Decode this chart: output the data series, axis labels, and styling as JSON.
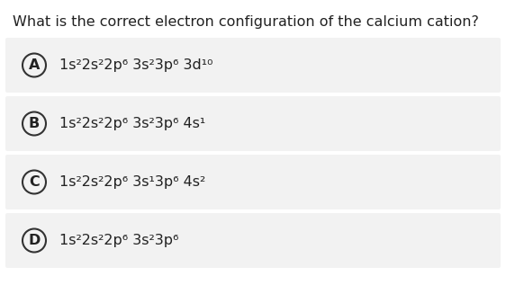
{
  "question": "What is the correct electron configuration of the calcium cation?",
  "options": [
    {
      "letter": "A",
      "config": "1s²2s²2p⁶3s²3p⁶ 3d¹⁰"
    },
    {
      "letter": "B",
      "config": "1s²2s²2p⁶ 3s²3p⁶ 4s¹"
    },
    {
      "letter": "C",
      "config": "1s²2s²2p⁶ 3s¹3p⁶ 4s²"
    },
    {
      "letter": "D",
      "config": "1s²2s²2p⁶ 3s²3p⁶"
    }
  ],
  "option_texts": [
    "1s²2s²2p⁶ 3s²3p⁶ 3d¹⁰",
    "1s²2s²2p⁶ 3s²3p⁶ 4s¹",
    "1s²2s²2p⁶ 3s¹3p⁶ 4s²",
    "1s²2s²2p⁶ 3s²3p⁶"
  ],
  "bg_color": "#ffffff",
  "option_bg_color": "#f2f2f2",
  "text_color": "#222222",
  "circle_color": "#333333",
  "question_fontsize": 11.5,
  "option_fontsize": 11.5
}
